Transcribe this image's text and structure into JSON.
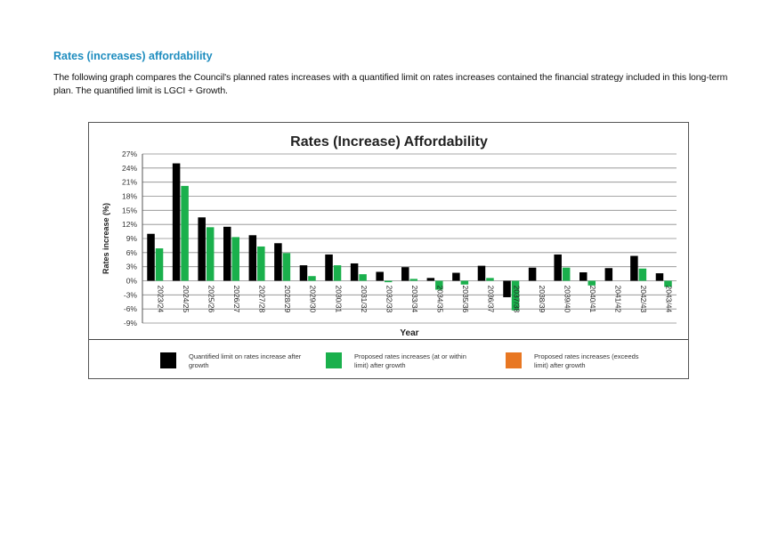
{
  "page": {
    "heading": "Rates (increases) affordability",
    "intro": "The following graph compares the Council's planned rates increases with a quantified limit on rates increases contained the financial strategy included in this long-term plan. The quantified limit is LGCI + Growth."
  },
  "chart_data": {
    "type": "bar",
    "title": "Rates (Increase) Affordability",
    "xlabel": "Year",
    "ylabel": "Rates increase (%)",
    "ylim": [
      -9,
      27
    ],
    "yticks": [
      -9,
      -6,
      -3,
      0,
      3,
      6,
      9,
      12,
      15,
      18,
      21,
      24,
      27
    ],
    "grid": true,
    "legend_position": "bottom",
    "categories": [
      "2023/24",
      "2024/25",
      "2025/26",
      "2026/27",
      "2027/28",
      "2028/29",
      "2029/30",
      "2030/31",
      "2031/32",
      "2032/33",
      "2033/34",
      "2034/35",
      "2035/36",
      "2036/37",
      "2037/38",
      "2038/39",
      "2039/40",
      "2040/41",
      "2041/42",
      "2042/43",
      "2043/44"
    ],
    "series": [
      {
        "name": "Quantified limit on rates increase after growth",
        "color": "#000000",
        "values": [
          10.0,
          25.0,
          13.5,
          11.5,
          9.7,
          8.0,
          3.3,
          5.6,
          3.7,
          1.9,
          2.9,
          0.6,
          1.7,
          3.2,
          -3.5,
          2.8,
          5.6,
          1.8,
          2.7,
          5.3,
          1.6
        ]
      },
      {
        "name": "Proposed rates increases (at or within limit) after growth",
        "color": "#1ab04c",
        "values": [
          6.9,
          20.2,
          11.4,
          9.3,
          7.3,
          5.9,
          1.0,
          3.3,
          1.4,
          -0.3,
          0.4,
          -1.9,
          -0.8,
          0.6,
          -6.3,
          0.0,
          2.8,
          -1.0,
          0.0,
          2.6,
          -1.3
        ]
      },
      {
        "name": "Proposed rates increases (exceeds limit) after growth",
        "color": "#e87722",
        "values": [
          0,
          0,
          0,
          0,
          0,
          0,
          0,
          0,
          0,
          0,
          0,
          0,
          0,
          0,
          0,
          0,
          0,
          0,
          0,
          0,
          0
        ]
      }
    ]
  }
}
